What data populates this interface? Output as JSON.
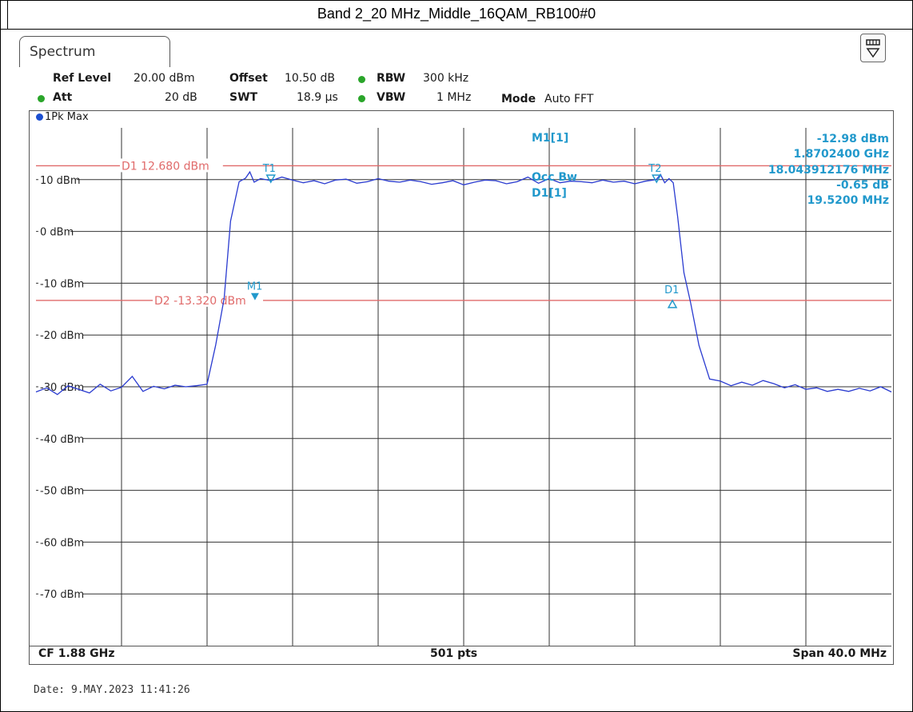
{
  "caption": "Band 2_20 MHz_Middle_16QAM_RB100#0",
  "tab": {
    "label": "Spectrum"
  },
  "settings": {
    "ref_level_label": "Ref Level",
    "ref_level_value": "20.00 dBm",
    "offset_label": "Offset",
    "offset_value": "10.50 dB",
    "rbw_label": "RBW",
    "rbw_value": "300 kHz",
    "att_label": "Att",
    "att_value": "20 dB",
    "swt_label": "SWT",
    "swt_value": "18.9 µs",
    "vbw_label": "VBW",
    "vbw_value": "1 MHz",
    "mode_label": "Mode",
    "mode_value": "Auto FFT"
  },
  "trace": {
    "label": "1Pk Max"
  },
  "markers_readout": {
    "m1_label": "M1[1]",
    "m1_level": "-12.98 dBm",
    "m1_freq": "1.8702400 GHz",
    "occ_bw_label": "Occ Bw",
    "occ_bw_value": "18.043912176 MHz",
    "d1_label": "D1[1]",
    "d1_level": "-0.65 dB",
    "d1_freq": "19.5200 MHz"
  },
  "footer": {
    "center_freq": "CF 1.88 GHz",
    "points": "501 pts",
    "span": "Span 40.0 MHz"
  },
  "date": "Date: 9.MAY.2023  11:41:26",
  "colors": {
    "trace": "#2a3bd0",
    "threshold": "#e06a6a",
    "marker": "#2299cc",
    "grid": "#333333"
  },
  "chart_data": {
    "type": "line",
    "title": "",
    "xlabel": "",
    "ylabel": "",
    "x_unit": "MHz offset from CF",
    "xlim": [
      -20,
      20
    ],
    "ylim": [
      -80,
      20
    ],
    "y_ticks": [
      "10 dBm",
      "0 dBm",
      "-10 dBm",
      "-20 dBm",
      "-30 dBm",
      "-40 dBm",
      "-50 dBm",
      "-60 dBm",
      "-70 dBm"
    ],
    "y_tick_values": [
      10,
      0,
      -10,
      -20,
      -30,
      -40,
      -50,
      -60,
      -70
    ],
    "grid": true,
    "series": [
      {
        "x": [
          -20,
          -19.5,
          -19,
          -18.5,
          -18,
          -17.5,
          -17,
          -16.5,
          -16,
          -15.5,
          -15,
          -14.5,
          -14,
          -13.5,
          -13,
          -12.5,
          -12,
          -11.6,
          -11.2,
          -10.9,
          -10.5,
          -10.2,
          -10,
          -9.8,
          -9.5,
          -9,
          -8.5,
          -8,
          -7.5,
          -7,
          -6.5,
          -6,
          -5.5,
          -5,
          -4.5,
          -4,
          -3.5,
          -3,
          -2.5,
          -2,
          -1.5,
          -1,
          -0.5,
          0,
          0.5,
          1,
          1.5,
          2,
          2.5,
          3,
          3.5,
          4,
          4.5,
          5,
          5.5,
          6,
          6.5,
          7,
          7.5,
          8,
          8.5,
          9,
          9.2,
          9.4,
          9.6,
          9.8,
          10,
          10.3,
          10.6,
          11,
          11.5,
          12,
          12.5,
          13,
          13.5,
          14,
          14.5,
          15,
          15.5,
          16,
          16.5,
          17,
          17.5,
          18,
          18.5,
          19,
          19.5,
          20
        ],
        "y": [
          -31,
          -30.2,
          -31.5,
          -29.8,
          -30.5,
          -31.2,
          -29.5,
          -30.8,
          -30.1,
          -28,
          -30.9,
          -29.9,
          -30.4,
          -29.7,
          -30,
          -29.8,
          -29.5,
          -22,
          -12.9,
          2,
          9.6,
          10.3,
          11.5,
          9.5,
          10.2,
          9.8,
          10.5,
          9.9,
          9.4,
          9.8,
          9.2,
          9.9,
          10.1,
          9.3,
          9.6,
          10.2,
          9.7,
          9.5,
          9.9,
          9.6,
          9.1,
          9.4,
          9.8,
          9,
          9.5,
          9.9,
          9.8,
          9.2,
          9.6,
          10.5,
          9.3,
          10.2,
          9.4,
          9.7,
          9.6,
          9.4,
          9.9,
          9.5,
          9.7,
          9.2,
          9.7,
          10,
          11,
          9.4,
          10.2,
          9.4,
          3,
          -8,
          -13.6,
          -22,
          -28.5,
          -28.9,
          -29.8,
          -29.1,
          -29.7,
          -28.8,
          -29.4,
          -30.2,
          -29.6,
          -30.5,
          -30.2,
          -30.9,
          -30.5,
          -30.9,
          -30.3,
          -30.8,
          -30,
          -31
        ]
      }
    ],
    "lines": [
      {
        "label": "D1",
        "text": "D1  12.680 dBm",
        "level": 12.68
      },
      {
        "label": "D2",
        "text": "D2  -13.320 dBm",
        "level": -13.32
      }
    ],
    "markers": [
      {
        "label": "M1",
        "x": -9.76,
        "y": -12.98
      },
      {
        "label": "D1",
        "x": 9.76,
        "y": -13.63
      },
      {
        "label": "T1",
        "x": -9.02,
        "y": 9.8
      },
      {
        "label": "T2",
        "x": 9.02,
        "y": 9.8
      }
    ]
  }
}
